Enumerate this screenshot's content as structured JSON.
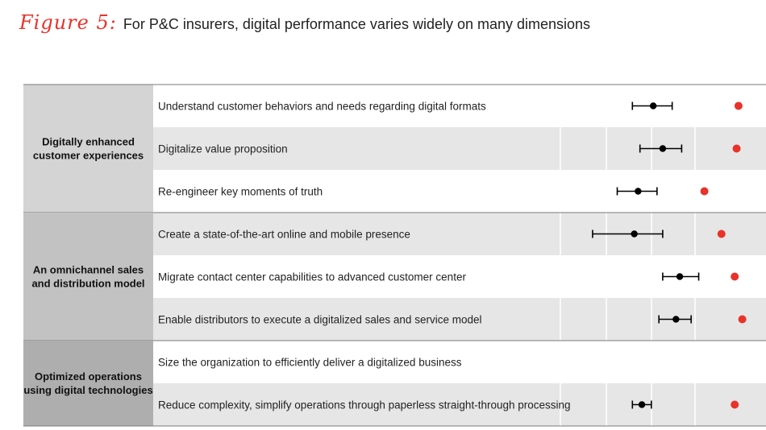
{
  "figure_label": "Figure 5:",
  "figure_title": "For P&C insurers, digital performance varies widely on many dimensions",
  "colors": {
    "accent": "#e8332b",
    "group_bg": [
      "#d4d4d4",
      "#c2c2c2",
      "#aeaeaf"
    ],
    "row_alt": "#e6e6e6",
    "marker": "#000000"
  },
  "chart_data": {
    "type": "scatter",
    "title": "",
    "xlabel": "",
    "ylabel": "",
    "xlim": [
      0,
      100
    ],
    "grid": true,
    "groups": [
      {
        "label": [
          "Digitally enhanced",
          "customer experiences"
        ],
        "rows": [
          0,
          1,
          2
        ]
      },
      {
        "label": [
          "An omnichannel sales",
          "and distribution model"
        ],
        "rows": [
          3,
          4,
          5
        ]
      },
      {
        "label": [
          "Optimized operations",
          "using digital technologies"
        ],
        "rows": [
          6,
          7
        ]
      }
    ],
    "rows": [
      {
        "label": "Understand customer behaviors and needs regarding digital formats",
        "low": 38,
        "mid": 49,
        "high": 59,
        "best": 94
      },
      {
        "label": "Digitalize value proposition",
        "low": 42,
        "mid": 54,
        "high": 64,
        "best": 93
      },
      {
        "label": "Re-engineer key moments of truth",
        "low": 30,
        "mid": 41,
        "high": 51,
        "best": 76
      },
      {
        "label": "Create a state-of-the-art online and mobile presence",
        "low": 17,
        "mid": 39,
        "high": 54,
        "best": 85
      },
      {
        "label": "Migrate contact center capabilities to advanced customer center",
        "low": 54,
        "mid": 63,
        "high": 73,
        "best": 92
      },
      {
        "label": "Enable distributors to execute a digitalized sales and service model",
        "low": 52,
        "mid": 61,
        "high": 69,
        "best": 96
      },
      {
        "label": "Size the organization to efficiently deliver a digitalized business",
        "low": null,
        "mid": null,
        "high": null,
        "best": null
      },
      {
        "label": "Reduce complexity, simplify operations through paperless straight-through processing",
        "low": 38,
        "mid": 43,
        "high": 48,
        "best": 92
      }
    ]
  }
}
